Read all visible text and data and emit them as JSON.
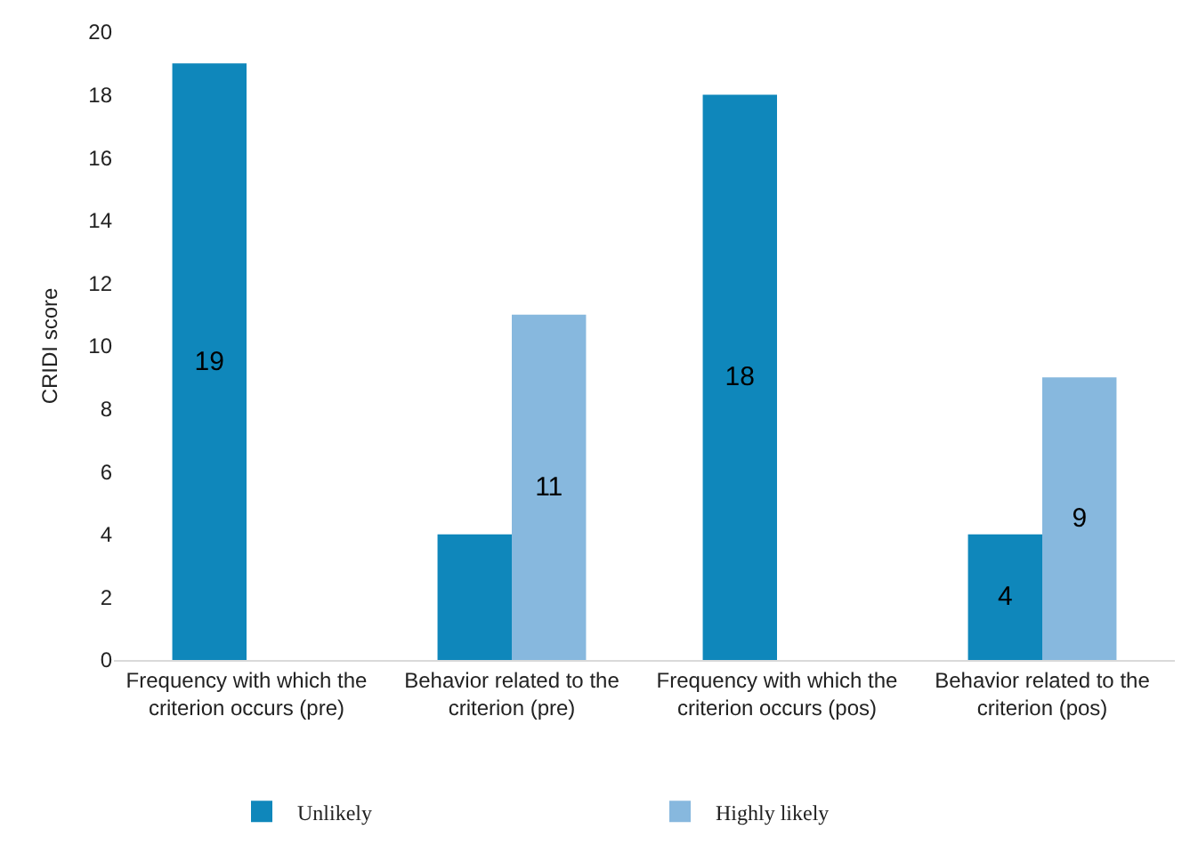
{
  "chart_data": {
    "type": "bar",
    "ylabel": "CRIDI score",
    "categories": [
      "Frequency with which the criterion occurs (pre)",
      "Behavior related to the criterion (pre)",
      "Frequency with which the criterion occurs (pos)",
      "Behavior related to the criterion (pos)"
    ],
    "series": [
      {
        "name": "Unlikely",
        "color": "#0f87bb",
        "values": [
          19,
          4,
          18,
          4
        ],
        "value_labels": [
          "19",
          null,
          "18",
          "4"
        ]
      },
      {
        "name": "Highly likely",
        "color": "#87b8de",
        "values": [
          null,
          11,
          null,
          9
        ],
        "value_labels": [
          null,
          "11",
          null,
          "9"
        ]
      }
    ],
    "ylim": [
      0,
      20
    ],
    "yticks": [
      0,
      2,
      4,
      6,
      8,
      10,
      12,
      14,
      16,
      18,
      20
    ],
    "grid": false,
    "legend": "bottom"
  }
}
